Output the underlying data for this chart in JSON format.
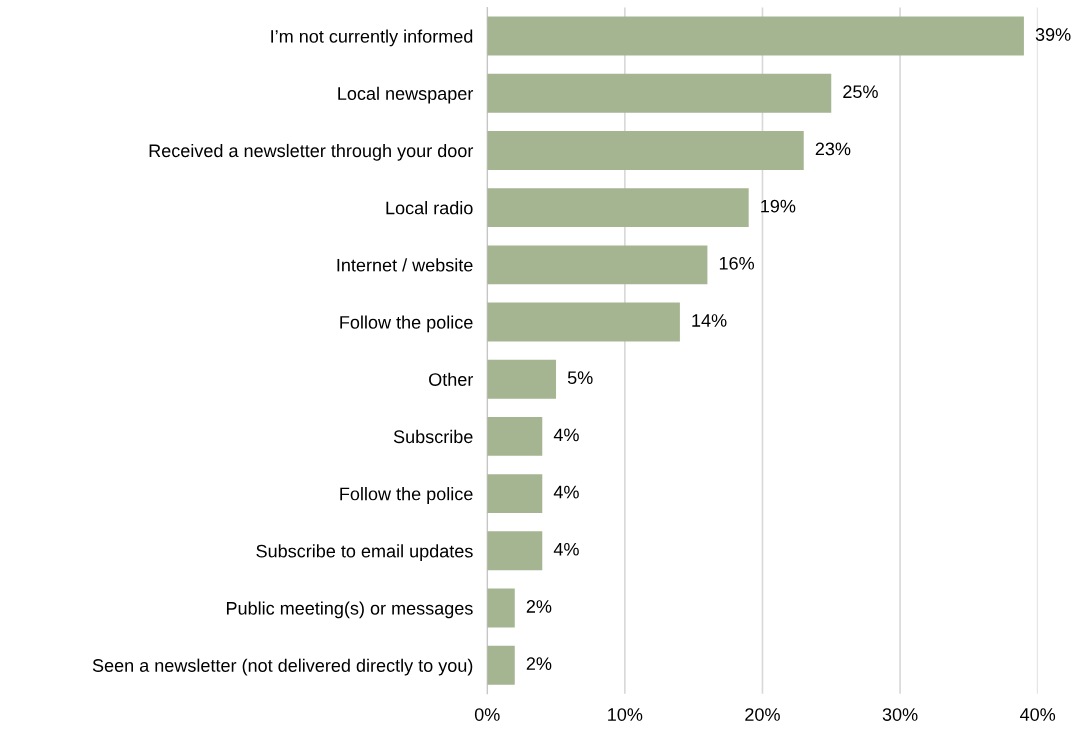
{
  "chart_data": {
    "type": "bar",
    "orientation": "horizontal",
    "categories": [
      "I’m not currently informed",
      "Local newspaper",
      "Received a newsletter through your door",
      "Local radio",
      "Internet / website",
      "Follow the police",
      "Other",
      "Subscribe",
      "Follow the police",
      "Subscribe to email updates",
      "Public meeting(s) or messages",
      "Seen a newsletter (not delivered directly to you)"
    ],
    "values": [
      39,
      25,
      23,
      19,
      16,
      14,
      5,
      4,
      4,
      4,
      2,
      2
    ],
    "value_labels": [
      "39%",
      "25%",
      "23%",
      "19%",
      "16%",
      "14%",
      "5%",
      "4%",
      "4%",
      "4%",
      "2%",
      "2%"
    ],
    "color": "#a5b592",
    "xlim": [
      0,
      40
    ],
    "xticks": [
      {
        "value": 0,
        "label": "0%"
      },
      {
        "value": 10,
        "label": "10%"
      },
      {
        "value": 20,
        "label": "20%"
      },
      {
        "value": 30,
        "label": "30%"
      },
      {
        "value": 40,
        "label": "40%"
      }
    ],
    "grid": "x"
  }
}
